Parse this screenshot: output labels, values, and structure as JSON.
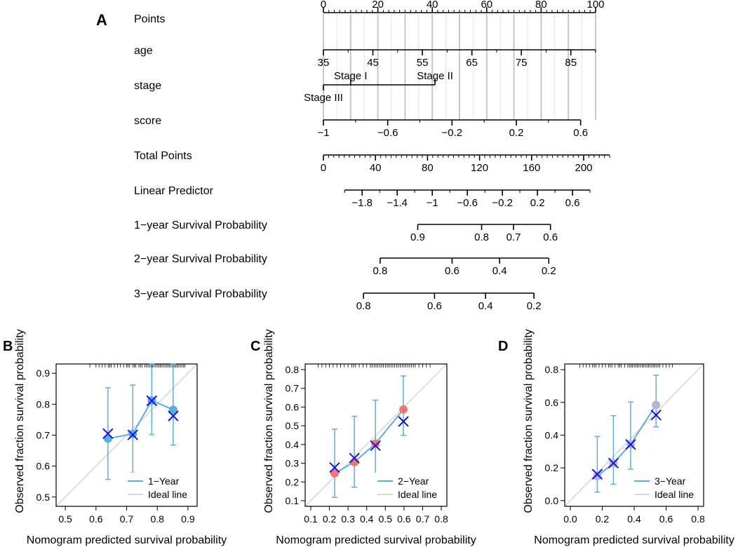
{
  "chart_data": [
    {
      "type": "nomogram",
      "panel_label": "A",
      "points_per_unit_total": 1,
      "axes": [
        {
          "name": "points",
          "label": "Points",
          "kind": "linear",
          "range": [
            0,
            100
          ],
          "ticks": [
            0,
            20,
            40,
            60,
            80,
            100
          ],
          "tick_labels": [
            "0",
            "20",
            "40",
            "60",
            "80",
            "100"
          ],
          "minor_step": 2,
          "label_side": "above"
        },
        {
          "name": "age",
          "label": "age",
          "kind": "linear",
          "range": [
            35,
            90
          ],
          "points_range": [
            0,
            100
          ],
          "ticks": [
            35,
            45,
            55,
            65,
            75,
            85
          ],
          "tick_labels": [
            "35",
            "45",
            "55",
            "65",
            "75",
            "85"
          ],
          "minor_step": 5,
          "label_side": "below"
        },
        {
          "name": "stage",
          "label": "stage",
          "kind": "categorical",
          "levels": [
            {
              "label": "Stage III",
              "points": 0,
              "row": "bottom"
            },
            {
              "label": "Stage I",
              "points": 10,
              "row": "top"
            },
            {
              "label": "Stage II",
              "points": 41,
              "row": "top"
            }
          ]
        },
        {
          "name": "score",
          "label": "score",
          "kind": "linear",
          "range": [
            -1,
            0.6
          ],
          "points_range": [
            0,
            94.5
          ],
          "ticks": [
            -1,
            -0.6,
            -0.2,
            0.2,
            0.6
          ],
          "tick_labels": [
            "−1",
            "−0.6",
            "−0.2",
            "0.2",
            "0.6"
          ],
          "minor_step": 0.2,
          "label_side": "below"
        },
        {
          "name": "total_points",
          "label": "Total Points",
          "kind": "linear",
          "range": [
            0,
            200
          ],
          "ticks": [
            0,
            40,
            80,
            120,
            160,
            200
          ],
          "tick_labels": [
            "0",
            "40",
            "80",
            "120",
            "160",
            "200"
          ],
          "minor_step": 4,
          "line_end": 220,
          "label_side": "below"
        },
        {
          "name": "linear_predictor",
          "label": "Linear Predictor",
          "kind": "linear",
          "range": [
            -2,
            0.8
          ],
          "total_points_range": [
            16.3,
            204.9
          ],
          "ticks": [
            -1.8,
            -1.4,
            -1,
            -0.6,
            -0.2,
            0.2,
            0.6
          ],
          "tick_labels": [
            "−1.8",
            "−1.4",
            "−1",
            "−0.6",
            "−0.2",
            "0.2",
            "0.6"
          ],
          "minor_step": 0.2,
          "label_side": "below"
        },
        {
          "name": "surv_1y",
          "label": "1−year Survival Probability",
          "kind": "probability",
          "ticks": [
            {
              "label": "0.9",
              "total_points": 72.5
            },
            {
              "label": "0.8",
              "total_points": 121.6
            },
            {
              "label": "0.7",
              "total_points": 146.1
            },
            {
              "label": "0.6",
              "total_points": 174.5
            }
          ]
        },
        {
          "name": "surv_2y",
          "label": "2−year Survival Probability",
          "kind": "probability",
          "ticks": [
            {
              "label": "0.8",
              "total_points": 43.6
            },
            {
              "label": "0.6",
              "total_points": 98.9
            },
            {
              "label": "0.4",
              "total_points": 135.4
            },
            {
              "label": "0.2",
              "total_points": 173.2
            }
          ]
        },
        {
          "name": "surv_3y",
          "label": "3−year Survival Probability",
          "kind": "probability",
          "ticks": [
            {
              "label": "0.8",
              "total_points": 30.8
            },
            {
              "label": "0.6",
              "total_points": 85.4
            },
            {
              "label": "0.4",
              "total_points": 124.6
            },
            {
              "label": "0.2",
              "total_points": 161.8
            }
          ]
        }
      ]
    },
    {
      "type": "calibration",
      "panel_label": "B",
      "xlabel": "Nomogram predicted survival probability",
      "ylabel": "Observed fraction survival probability",
      "xlim": [
        0.47,
        0.93
      ],
      "ylim": [
        0.47,
        0.93
      ],
      "xticks": [
        0.5,
        0.6,
        0.7,
        0.8,
        0.9
      ],
      "xtick_labels": [
        "0.5",
        "0.6",
        "0.7",
        "0.8",
        "0.9"
      ],
      "yticks": [
        0.5,
        0.6,
        0.7,
        0.8,
        0.9
      ],
      "ytick_labels": [
        "0.5",
        "0.6",
        "0.7",
        "0.8",
        "0.9"
      ],
      "color": "#5aafdc",
      "rug": [
        0.58,
        0.6,
        0.61,
        0.62,
        0.63,
        0.64,
        0.645,
        0.65,
        0.66,
        0.67,
        0.68,
        0.69,
        0.7,
        0.705,
        0.71,
        0.72,
        0.725,
        0.73,
        0.74,
        0.745,
        0.75,
        0.76,
        0.765,
        0.77,
        0.775,
        0.78,
        0.785,
        0.79,
        0.795,
        0.8,
        0.805,
        0.81,
        0.815,
        0.82,
        0.825,
        0.83,
        0.835,
        0.84,
        0.845,
        0.85,
        0.855,
        0.86,
        0.865,
        0.87,
        0.875,
        0.88,
        0.885,
        0.89
      ],
      "points": [
        {
          "x": 0.639,
          "y": 0.689,
          "lo": 0.557,
          "hi": 0.853,
          "cx": 0.639,
          "cy": 0.705
        },
        {
          "x": 0.72,
          "y": 0.704,
          "lo": 0.578,
          "hi": 0.862,
          "cx": 0.72,
          "cy": 0.701
        },
        {
          "x": 0.782,
          "y": 0.812,
          "lo": 0.702,
          "hi": 0.93,
          "cx": 0.782,
          "cy": 0.811
        },
        {
          "x": 0.852,
          "y": 0.782,
          "lo": 0.668,
          "hi": 0.93,
          "cx": 0.852,
          "cy": 0.762
        }
      ],
      "legend": [
        {
          "label": "1−Year"
        },
        {
          "label": "Ideal line"
        }
      ]
    },
    {
      "type": "calibration",
      "panel_label": "C",
      "xlabel": "Nomogram predicted survival probability",
      "ylabel": "Observed fraction survival probability",
      "xlim": [
        0.07,
        0.83
      ],
      "ylim": [
        0.07,
        0.83
      ],
      "xticks": [
        0.1,
        0.2,
        0.3,
        0.4,
        0.5,
        0.6,
        0.7,
        0.8
      ],
      "xtick_labels": [
        "0.1",
        "0.2",
        "0.3",
        "0.4",
        "0.5",
        "0.6",
        "0.7",
        "0.8"
      ],
      "yticks": [
        0.1,
        0.2,
        0.3,
        0.4,
        0.5,
        0.6,
        0.7,
        0.8
      ],
      "ytick_labels": [
        "0.1",
        "0.2",
        "0.3",
        "0.4",
        "0.5",
        "0.6",
        "0.7",
        "0.8"
      ],
      "color": "#f4766d",
      "rug": [
        0.14,
        0.16,
        0.18,
        0.2,
        0.22,
        0.24,
        0.26,
        0.28,
        0.3,
        0.32,
        0.33,
        0.34,
        0.36,
        0.38,
        0.4,
        0.42,
        0.43,
        0.44,
        0.45,
        0.46,
        0.47,
        0.48,
        0.49,
        0.5,
        0.51,
        0.52,
        0.53,
        0.54,
        0.55,
        0.56,
        0.57,
        0.58,
        0.59,
        0.6,
        0.61,
        0.62,
        0.63,
        0.64,
        0.65,
        0.66,
        0.68,
        0.7,
        0.72,
        0.74
      ],
      "points": [
        {
          "x": 0.228,
          "y": 0.247,
          "lo": 0.118,
          "hi": 0.482,
          "cx": 0.228,
          "cy": 0.277
        },
        {
          "x": 0.334,
          "y": 0.306,
          "lo": 0.172,
          "hi": 0.551,
          "cx": 0.334,
          "cy": 0.327
        },
        {
          "x": 0.447,
          "y": 0.405,
          "lo": 0.222,
          "hi": 0.637,
          "cx": 0.447,
          "cy": 0.394
        },
        {
          "x": 0.597,
          "y": 0.587,
          "lo": 0.449,
          "hi": 0.766,
          "cx": 0.597,
          "cy": 0.523
        }
      ],
      "legend": [
        {
          "label": "2−Year"
        },
        {
          "label": "Ideal line"
        }
      ]
    },
    {
      "type": "calibration",
      "panel_label": "D",
      "xlabel": "Nomogram predicted survival probability",
      "ylabel": "Observed fraction survival probability",
      "xlim": [
        -0.035,
        0.835
      ],
      "ylim": [
        -0.035,
        0.835
      ],
      "xticks": [
        0,
        0.2,
        0.4,
        0.6,
        0.8
      ],
      "xtick_labels": [
        "0.0",
        "0.2",
        "0.4",
        "0.6",
        "0.8"
      ],
      "yticks": [
        0,
        0.2,
        0.4,
        0.6,
        0.8
      ],
      "ytick_labels": [
        "0.0",
        "0.2",
        "0.4",
        "0.6",
        "0.8"
      ],
      "color": "#b9b1dc",
      "rug": [
        0.06,
        0.08,
        0.1,
        0.12,
        0.14,
        0.15,
        0.16,
        0.18,
        0.2,
        0.22,
        0.24,
        0.25,
        0.26,
        0.28,
        0.3,
        0.31,
        0.32,
        0.34,
        0.36,
        0.37,
        0.38,
        0.39,
        0.4,
        0.41,
        0.42,
        0.43,
        0.44,
        0.45,
        0.46,
        0.47,
        0.48,
        0.49,
        0.5,
        0.51,
        0.52,
        0.53,
        0.54,
        0.55,
        0.56,
        0.58,
        0.6,
        0.62,
        0.64
      ],
      "points": [
        {
          "x": 0.169,
          "y": 0.149,
          "lo": 0.052,
          "hi": 0.392,
          "cx": 0.169,
          "cy": 0.161
        },
        {
          "x": 0.27,
          "y": 0.229,
          "lo": 0.1,
          "hi": 0.519,
          "cx": 0.27,
          "cy": 0.229
        },
        {
          "x": 0.378,
          "y": 0.344,
          "lo": 0.192,
          "hi": 0.603,
          "cx": 0.378,
          "cy": 0.343
        },
        {
          "x": 0.537,
          "y": 0.585,
          "lo": 0.451,
          "hi": 0.766,
          "cx": 0.537,
          "cy": 0.523
        }
      ],
      "legend": [
        {
          "label": "3−Year"
        },
        {
          "label": "Ideal line"
        }
      ]
    }
  ],
  "colors": {
    "curve": "#5aafdc",
    "cross": "#1515e6",
    "ideal": "#d8d8d8",
    "text": "#000000"
  }
}
